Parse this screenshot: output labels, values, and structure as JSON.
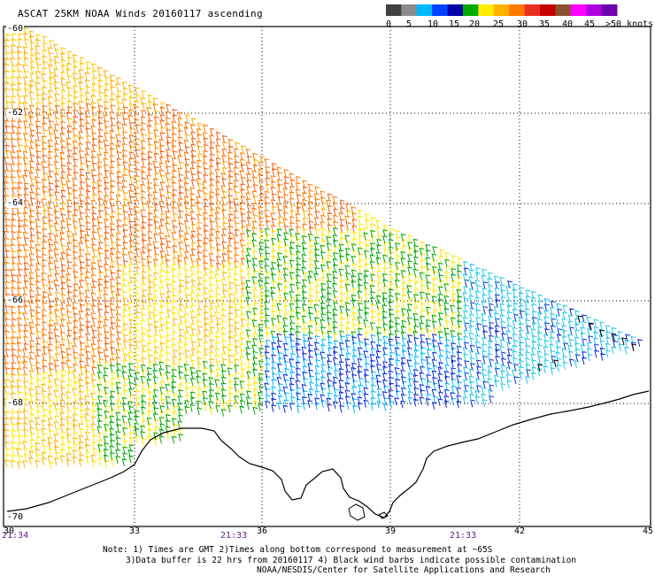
{
  "title": "ASCAT 25KM NOAA Winds 20160117 ascending",
  "colorbar": {
    "labels": [
      "0",
      "5",
      "10",
      "15",
      "20",
      "25",
      "30",
      "35",
      "40",
      "45",
      ">50 knots"
    ],
    "colors": [
      "#404040",
      "#8c8c8c",
      "#00b8ff",
      "#0044ff",
      "#0000a8",
      "#00aa00",
      "#ffee00",
      "#ffb200",
      "#ff7800",
      "#e83020",
      "#c80000",
      "#8c5030",
      "#ff00ff",
      "#b000e0",
      "#7000b0"
    ]
  },
  "lat_labels": [
    "-60",
    "-62",
    "-64",
    "-66",
    "-68",
    "-70"
  ],
  "lon_labels": [
    "30",
    "33",
    "36",
    "39",
    "42",
    "45"
  ],
  "time_labels": [
    "21:34",
    "21:33",
    "21:33"
  ],
  "notes": [
    "Note: 1) Times are GMT 2)Times along bottom correspond to measurement at ~65S",
    "3)Data buffer is 22 hrs from 20160117 4) Black wind barbs indicate possible contamination",
    "NOAA/NESDIS/Center for Satellite Applications and Research"
  ],
  "map": {
    "lat_range": [
      -70,
      -60
    ],
    "lon_range": [
      30,
      45
    ],
    "grid": "dotted",
    "wind_speed_units": "knots"
  }
}
